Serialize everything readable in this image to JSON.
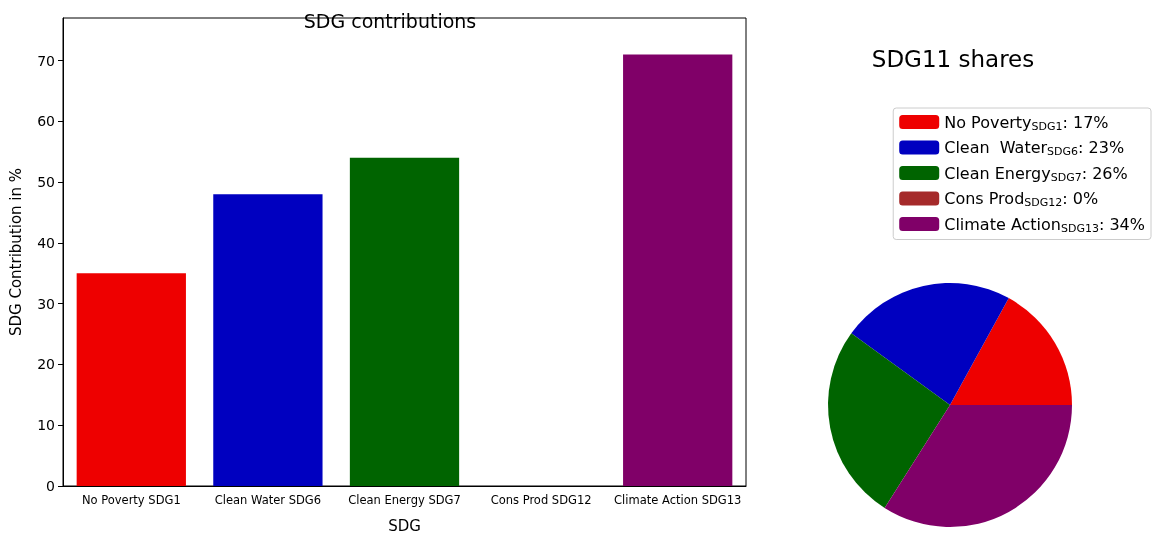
{
  "chart_data": [
    {
      "type": "bar",
      "title": "SDG contributions",
      "xlabel": "SDG",
      "ylabel": "SDG Contribution in %",
      "categories": [
        "No Poverty SDG1",
        "Clean Water SDG6",
        "Clean Energy SDG7",
        "Cons Prod SDG12",
        "Climate Action SDG13"
      ],
      "values": [
        35,
        48,
        54,
        0,
        71
      ],
      "colors": [
        "#ee0000",
        "#0000c0",
        "#006400",
        "#a52a2a",
        "#800068"
      ],
      "ylim": [
        0,
        77
      ],
      "yticks": [
        0,
        10,
        20,
        30,
        40,
        50,
        60,
        70
      ],
      "grid": false
    },
    {
      "type": "pie",
      "title": "SDG11 shares",
      "categories": [
        "No Poverty$_{SDG1}$: 17%",
        "Clean  Water$_{SDG6}$: 23%",
        "Clean Energy$_{SDG7}$: 26%",
        "Cons Prod$_{SDG12}$: 0%",
        "Climate Action$_{SDG13}$: 34%"
      ],
      "values": [
        17,
        23,
        26,
        0,
        34
      ],
      "colors": [
        "#ee0000",
        "#0000c0",
        "#006400",
        "#a52a2a",
        "#800068"
      ],
      "legend": "top right"
    }
  ]
}
